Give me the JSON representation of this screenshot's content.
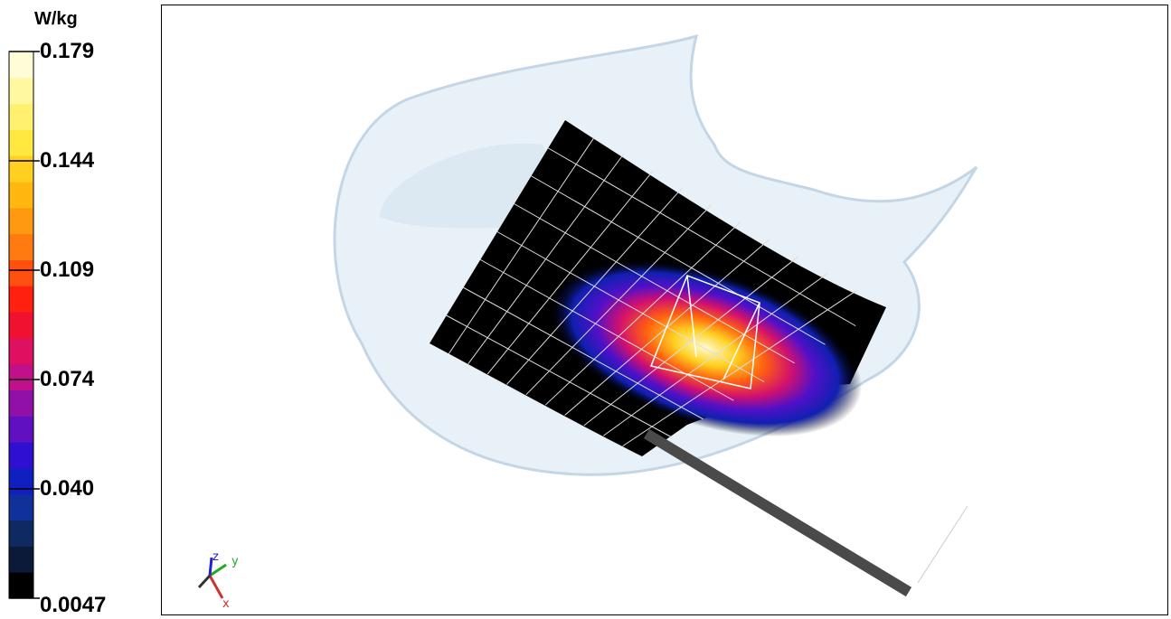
{
  "legend": {
    "unit": "W/kg",
    "labels": [
      "0.179",
      "0.144",
      "0.109",
      "0.074",
      "0.040",
      "0.0047"
    ]
  },
  "triad": {
    "z": "z",
    "y": "y",
    "x": "x"
  }
}
